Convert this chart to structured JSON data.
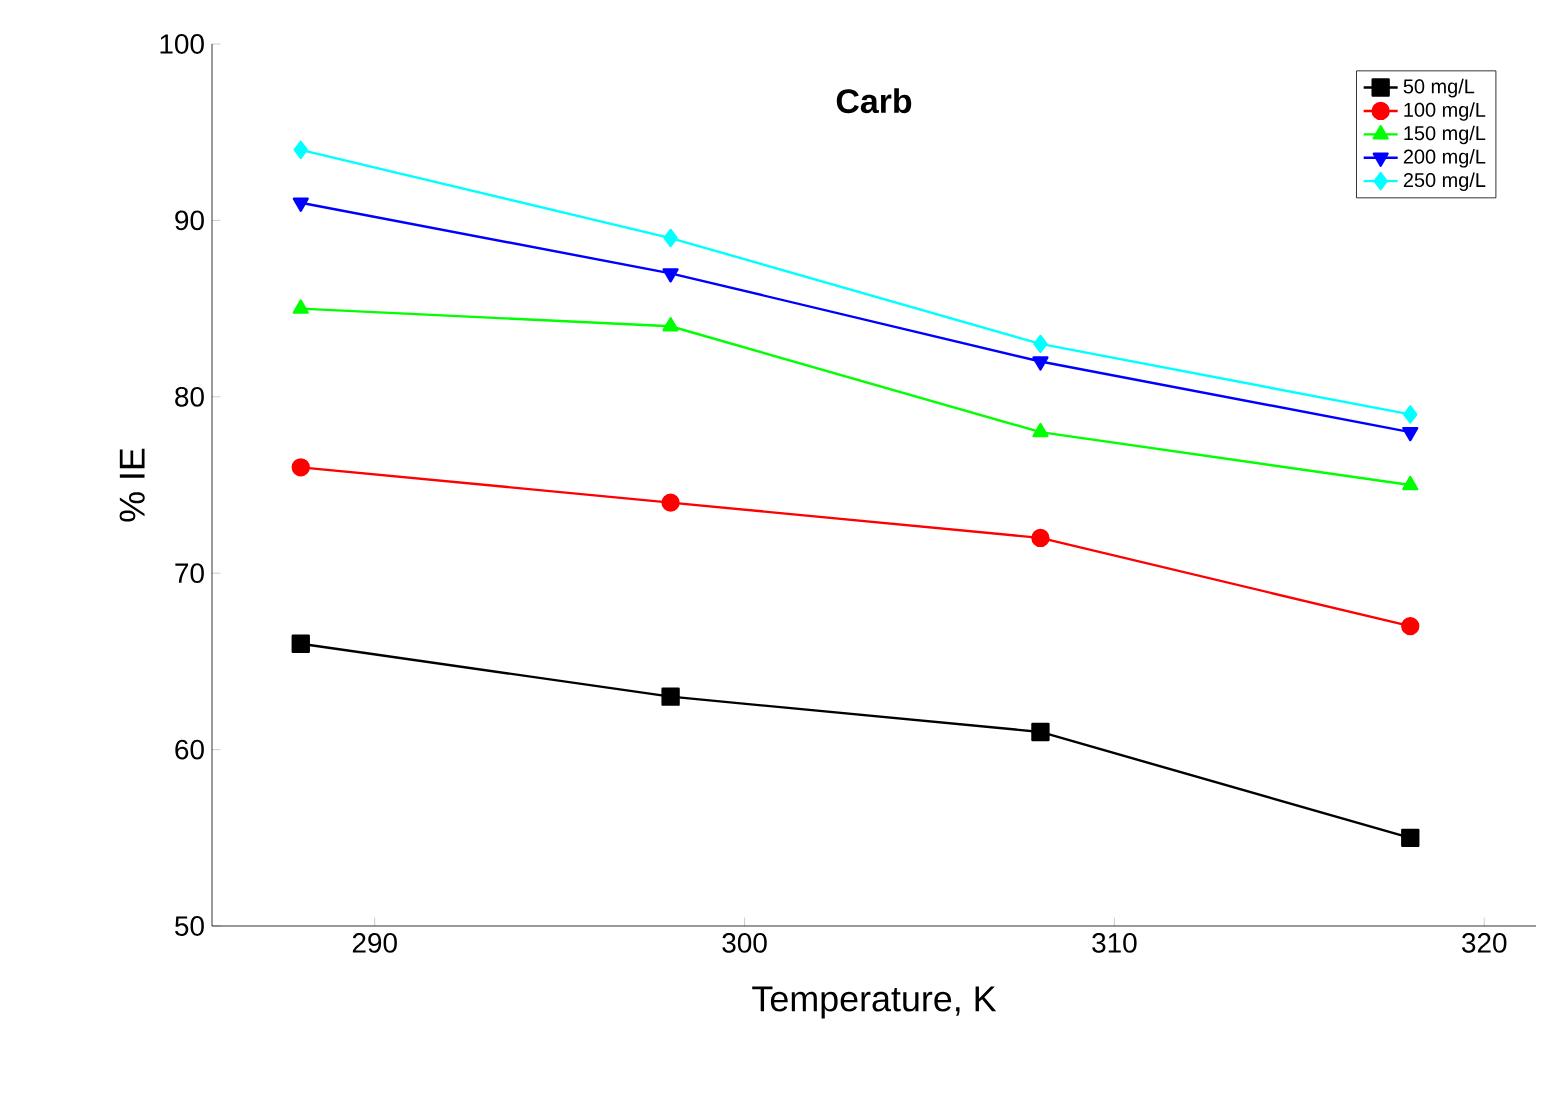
{
  "chart_data": {
    "type": "line",
    "title": "Carb",
    "xlabel": "Temperature, K",
    "ylabel": "% IE",
    "x": [
      288,
      298,
      308,
      318
    ],
    "series": [
      {
        "name": "50 mg/L",
        "color": "#000000",
        "marker": "square",
        "values": [
          66,
          63,
          61,
          55
        ]
      },
      {
        "name": "100 mg/L",
        "color": "#ff0000",
        "marker": "circle",
        "values": [
          76,
          74,
          72,
          67
        ]
      },
      {
        "name": "150 mg/L",
        "color": "#00ff00",
        "marker": "triangle",
        "values": [
          85,
          84,
          78,
          75
        ]
      },
      {
        "name": "200 mg/L",
        "color": "#0000ff",
        "marker": "triangle-down",
        "values": [
          91,
          87,
          82,
          78
        ]
      },
      {
        "name": "250 mg/L",
        "color": "#00ffff",
        "marker": "diamond",
        "values": [
          94,
          89,
          83,
          79
        ]
      }
    ],
    "xlim": [
      285.6,
      321.4
    ],
    "ylim": [
      50,
      100
    ],
    "xticks": [
      290,
      300,
      310,
      320
    ],
    "yticks": [
      50,
      60,
      70,
      80,
      90,
      100
    ],
    "grid": false,
    "legend": "top right",
    "line_style": "solid"
  }
}
